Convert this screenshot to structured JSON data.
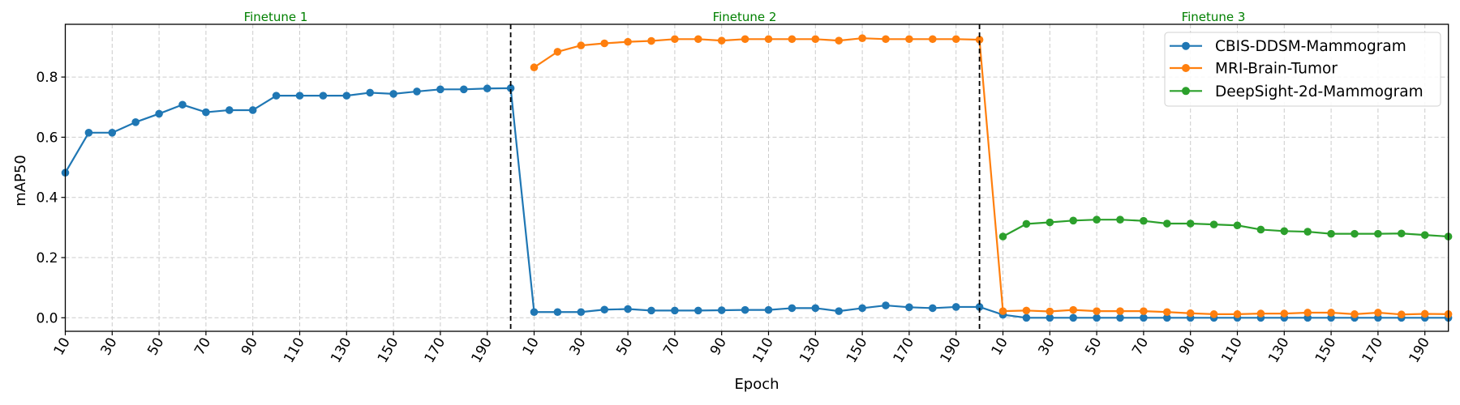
{
  "chart_data": {
    "type": "line",
    "title": "",
    "xlabel": "Epoch",
    "ylabel": "mAP50",
    "ylim": [
      -0.045,
      0.975
    ],
    "yticks": [
      0.0,
      0.2,
      0.4,
      0.6,
      0.8
    ],
    "ytick_labels": [
      "0.0",
      "0.2",
      "0.4",
      "0.6",
      "0.8"
    ],
    "grid": true,
    "legend_position": "upper right",
    "panels": [
      {
        "title": "Finetune 1",
        "title_color": "#008000"
      },
      {
        "title": "Finetune 2",
        "title_color": "#008000"
      },
      {
        "title": "Finetune 3",
        "title_color": "#008000"
      }
    ],
    "phase_boundaries_after_index": [
      19,
      39
    ],
    "x_epochs_per_phase": [
      10,
      20,
      30,
      40,
      50,
      60,
      70,
      80,
      90,
      100,
      110,
      120,
      130,
      140,
      150,
      160,
      170,
      180,
      190,
      200
    ],
    "xtick_labels_per_phase": [
      "10",
      "30",
      "50",
      "70",
      "90",
      "110",
      "130",
      "150",
      "170",
      "190"
    ],
    "series": [
      {
        "name": "CBIS-DDSM-Mammogram",
        "color": "#1f77b4",
        "phases": [
          [
            0.482,
            0.615,
            0.615,
            0.65,
            0.678,
            0.708,
            0.683,
            0.69,
            0.69,
            0.738,
            0.738,
            0.738,
            0.738,
            0.748,
            0.744,
            0.752,
            0.759,
            0.759,
            0.762,
            0.763
          ],
          [
            0.019,
            0.019,
            0.019,
            0.027,
            0.029,
            0.024,
            0.024,
            0.024,
            0.025,
            0.026,
            0.026,
            0.032,
            0.032,
            0.022,
            0.032,
            0.041,
            0.035,
            0.032,
            0.036,
            0.036
          ],
          [
            0.01,
            0.0,
            0.0,
            0.0,
            0.0,
            0.0,
            0.0,
            0.0,
            0.0,
            0.0,
            0.0,
            0.0,
            0.0,
            0.0,
            0.0,
            0.0,
            0.0,
            0.0,
            0.0,
            0.0
          ]
        ]
      },
      {
        "name": "MRI-Brain-Tumor",
        "color": "#ff7f0e",
        "phases": [
          null,
          [
            0.832,
            0.884,
            0.905,
            0.912,
            0.917,
            0.92,
            0.926,
            0.926,
            0.921,
            0.926,
            0.926,
            0.926,
            0.926,
            0.921,
            0.929,
            0.926,
            0.926,
            0.926,
            0.926,
            0.924
          ],
          [
            0.022,
            0.024,
            0.021,
            0.026,
            0.022,
            0.022,
            0.022,
            0.019,
            0.015,
            0.012,
            0.012,
            0.014,
            0.014,
            0.017,
            0.017,
            0.012,
            0.017,
            0.011,
            0.013,
            0.012
          ]
        ]
      },
      {
        "name": "DeepSight-2d-Mammogram",
        "color": "#2ca02c",
        "phases": [
          null,
          null,
          [
            0.27,
            0.312,
            0.317,
            0.323,
            0.326,
            0.326,
            0.322,
            0.313,
            0.313,
            0.31,
            0.307,
            0.293,
            0.288,
            0.286,
            0.279,
            0.279,
            0.279,
            0.28,
            0.275,
            0.27
          ]
        ]
      }
    ]
  },
  "legend": {
    "items": [
      {
        "label": "CBIS-DDSM-Mammogram",
        "color": "#1f77b4"
      },
      {
        "label": "MRI-Brain-Tumor",
        "color": "#ff7f0e"
      },
      {
        "label": "DeepSight-2d-Mammogram",
        "color": "#2ca02c"
      }
    ]
  },
  "axes": {
    "xlabel": "Epoch",
    "ylabel": "mAP50"
  },
  "titles": [
    "Finetune 1",
    "Finetune 2",
    "Finetune 3"
  ]
}
